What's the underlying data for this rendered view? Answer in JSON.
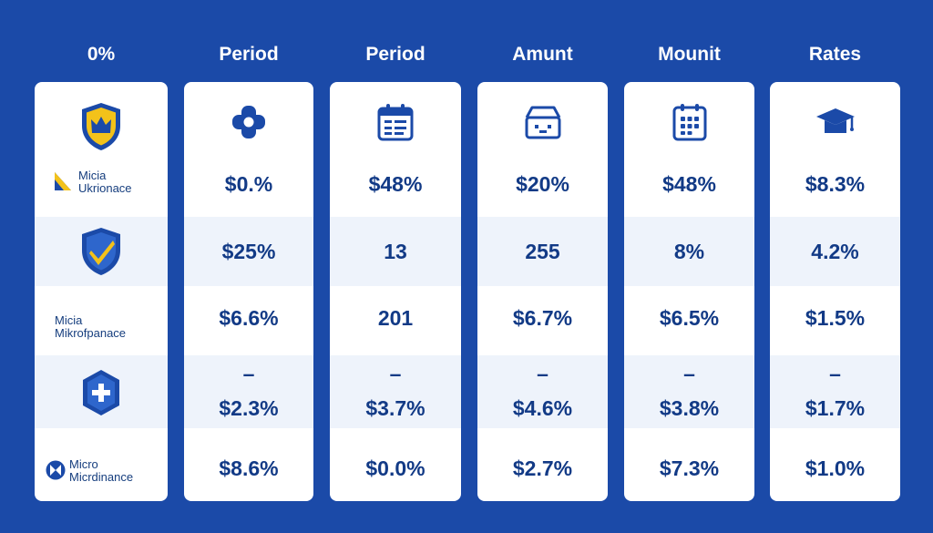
{
  "headers": [
    "0%",
    "Period",
    "Period",
    "Amunt",
    "Mounit",
    "Rates"
  ],
  "brands": [
    {
      "line1": "Micia",
      "line2": "Ukrionace"
    },
    {
      "line1": "Micia",
      "line2": "Mikrofpanace"
    },
    {
      "line1": "Micro",
      "line2": "Micrdinance"
    }
  ],
  "columns": [
    {
      "icon": "medical-cross-icon",
      "values": [
        "$0.%",
        "$25%",
        "$6.6%",
        "–",
        "$2.3%",
        "$8.6%"
      ]
    },
    {
      "icon": "calendar-icon",
      "values": [
        "$48%",
        "13",
        "201",
        "–",
        "$3.7%",
        "$0.0%"
      ]
    },
    {
      "icon": "house-icon",
      "values": [
        "$20%",
        "255",
        "$6.7%",
        "–",
        "$4.6%",
        "$2.7%"
      ]
    },
    {
      "icon": "calendar-grid-icon",
      "values": [
        "$48%",
        "8%",
        "$6.5%",
        "–",
        "$3.8%",
        "$7.3%"
      ]
    },
    {
      "icon": "graduation-cap-icon",
      "values": [
        "$8.3%",
        "4.2%",
        "$1.5%",
        "–",
        "$1.7%",
        "$1.0%"
      ]
    }
  ],
  "logos": [
    "crown-shield-icon",
    "check-shield-icon",
    "cross-hexagon-icon"
  ],
  "colors": {
    "background": "#1b4aa8",
    "value_text": "#123a86",
    "band": "#eef3fb",
    "accent_yellow": "#f3c21a"
  }
}
